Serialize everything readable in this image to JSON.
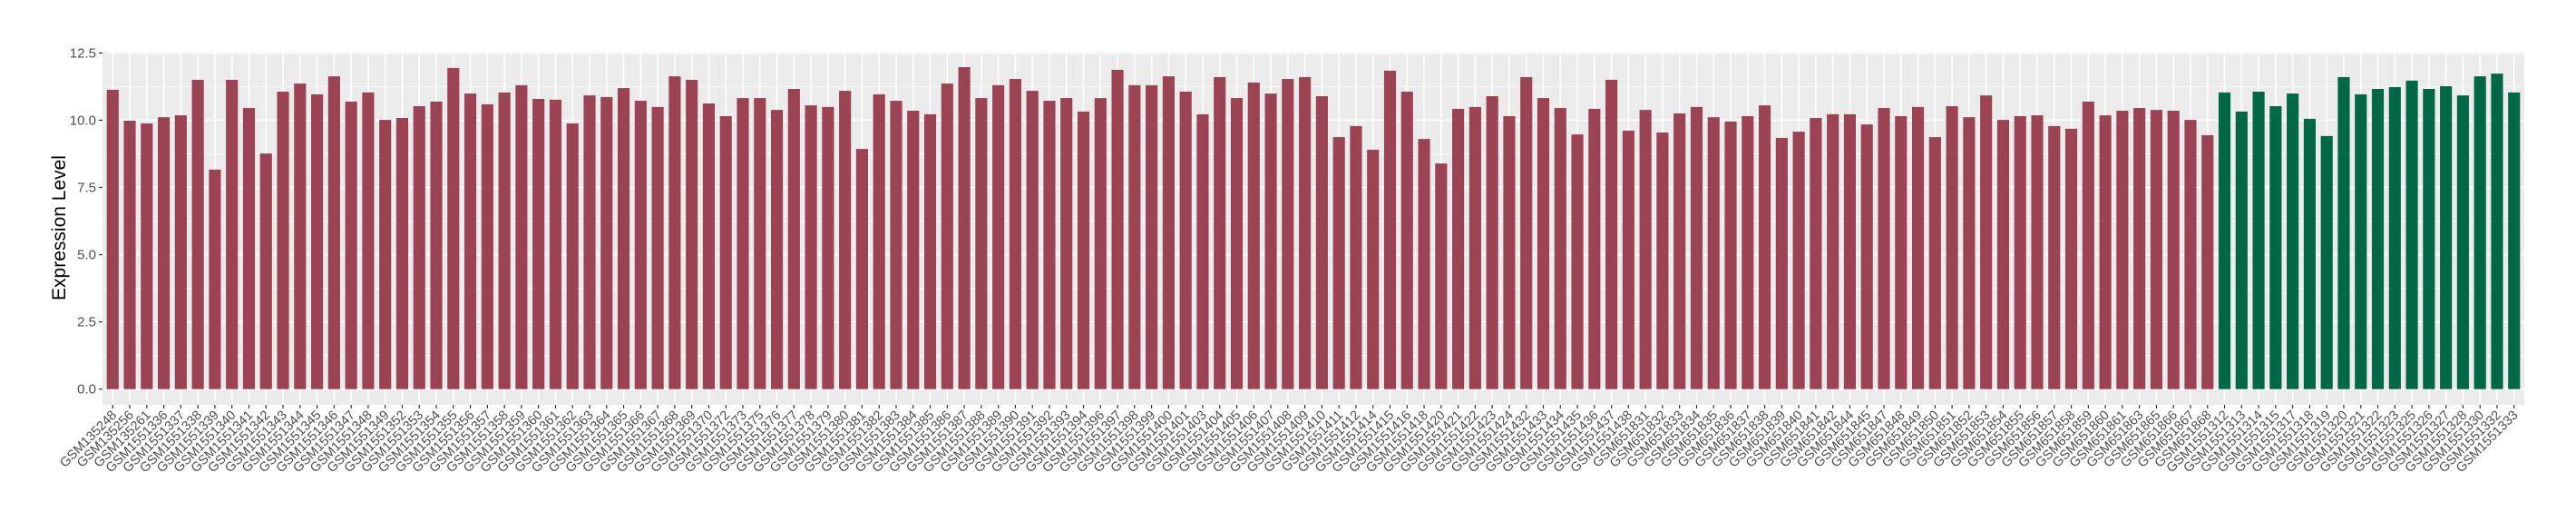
{
  "chart_data": {
    "type": "bar",
    "title": "",
    "xlabel": "",
    "ylabel": "Expression Level",
    "ylim": [
      0,
      12.5
    ],
    "yticks": [
      "0.0",
      "2.5",
      "5.0",
      "7.5",
      "10.0",
      "12.5"
    ],
    "grid": true,
    "legend": "none",
    "colors": {
      "group1": "#9b4352",
      "group2": "#006846",
      "panel": "#ebebeb",
      "grid": "#ffffff"
    },
    "categories": [
      "GSM135248",
      "GSM135256",
      "GSM135261",
      "GSM1551336",
      "GSM1551337",
      "GSM1551338",
      "GSM1551339",
      "GSM1551340",
      "GSM1551341",
      "GSM1551342",
      "GSM1551343",
      "GSM1551344",
      "GSM1551345",
      "GSM1551346",
      "GSM1551347",
      "GSM1551348",
      "GSM1551349",
      "GSM1551352",
      "GSM1551353",
      "GSM1551354",
      "GSM1551355",
      "GSM1551356",
      "GSM1551357",
      "GSM1551358",
      "GSM1551359",
      "GSM1551360",
      "GSM1551361",
      "GSM1551362",
      "GSM1551363",
      "GSM1551364",
      "GSM1551365",
      "GSM1551366",
      "GSM1551367",
      "GSM1551368",
      "GSM1551369",
      "GSM1551370",
      "GSM1551372",
      "GSM1551373",
      "GSM1551375",
      "GSM1551376",
      "GSM1551377",
      "GSM1551378",
      "GSM1551379",
      "GSM1551380",
      "GSM1551381",
      "GSM1551382",
      "GSM1551383",
      "GSM1551384",
      "GSM1551385",
      "GSM1551386",
      "GSM1551387",
      "GSM1551388",
      "GSM1551389",
      "GSM1551390",
      "GSM1551391",
      "GSM1551392",
      "GSM1551393",
      "GSM1551394",
      "GSM1551396",
      "GSM1551397",
      "GSM1551398",
      "GSM1551399",
      "GSM1551400",
      "GSM1551401",
      "GSM1551403",
      "GSM1551404",
      "GSM1551405",
      "GSM1551406",
      "GSM1551407",
      "GSM1551408",
      "GSM1551409",
      "GSM1551410",
      "GSM1551411",
      "GSM1551412",
      "GSM1551414",
      "GSM1551415",
      "GSM1551416",
      "GSM1551418",
      "GSM1551420",
      "GSM1551421",
      "GSM1551422",
      "GSM1551423",
      "GSM1551424",
      "GSM1551432",
      "GSM1551433",
      "GSM1551434",
      "GSM1551435",
      "GSM1551436",
      "GSM1551437",
      "GSM1551438",
      "GSM651831",
      "GSM651832",
      "GSM651833",
      "GSM651834",
      "GSM651835",
      "GSM651836",
      "GSM651837",
      "GSM651838",
      "GSM651839",
      "GSM651840",
      "GSM651841",
      "GSM651842",
      "GSM651844",
      "GSM651845",
      "GSM651847",
      "GSM651848",
      "GSM651849",
      "GSM651850",
      "GSM651851",
      "GSM651852",
      "GSM651853",
      "GSM651854",
      "GSM651855",
      "GSM651856",
      "GSM651857",
      "GSM651858",
      "GSM651859",
      "GSM651860",
      "GSM651861",
      "GSM651863",
      "GSM651865",
      "GSM651866",
      "GSM651867",
      "GSM651868",
      "GSM1551312",
      "GSM1551313",
      "GSM1551314",
      "GSM1551315",
      "GSM1551317",
      "GSM1551318",
      "GSM1551319",
      "GSM1551320",
      "GSM1551321",
      "GSM1551322",
      "GSM1551323",
      "GSM1551325",
      "GSM1551326",
      "GSM1551327",
      "GSM1551328",
      "GSM1551330",
      "GSM1551332",
      "GSM1551333"
    ],
    "values": [
      11.13,
      9.98,
      9.88,
      10.11,
      10.18,
      11.5,
      8.16,
      11.5,
      10.45,
      8.76,
      11.06,
      11.36,
      10.96,
      11.63,
      10.69,
      11.03,
      10.01,
      10.08,
      10.52,
      10.69,
      11.94,
      10.99,
      10.59,
      11.03,
      11.3,
      10.79,
      10.76,
      9.88,
      10.92,
      10.86,
      11.19,
      10.72,
      10.49,
      11.63,
      11.5,
      10.62,
      10.15,
      10.82,
      10.82,
      10.38,
      11.16,
      10.55,
      10.49,
      11.09,
      8.93,
      10.96,
      10.72,
      10.35,
      10.22,
      11.36,
      11.97,
      10.82,
      11.3,
      11.53,
      11.09,
      10.72,
      10.82,
      10.32,
      10.82,
      11.87,
      11.3,
      11.3,
      11.63,
      11.06,
      10.22,
      11.6,
      10.82,
      11.4,
      10.99,
      11.53,
      11.6,
      10.89,
      9.37,
      9.78,
      8.9,
      11.84,
      11.06,
      9.3,
      8.39,
      10.42,
      10.49,
      10.89,
      10.15,
      11.6,
      10.82,
      10.45,
      9.47,
      10.42,
      11.5,
      9.61,
      10.38,
      9.54,
      10.25,
      10.49,
      10.11,
      9.95,
      10.15,
      10.55,
      9.34,
      9.57,
      10.08,
      10.22,
      10.22,
      9.84,
      10.45,
      10.15,
      10.49,
      9.37,
      10.52,
      10.11,
      10.92,
      10.01,
      10.15,
      10.18,
      9.78,
      9.68,
      10.69,
      10.18,
      10.35,
      10.45,
      10.38,
      10.35,
      10.01,
      9.44,
      11.03,
      10.32,
      11.06,
      10.52,
      10.99,
      10.05,
      9.41,
      11.6,
      10.96,
      11.16,
      11.23,
      11.47,
      11.16,
      11.26,
      10.92,
      11.63,
      11.73,
      11.03
    ],
    "groups": [
      1,
      1,
      1,
      1,
      1,
      1,
      1,
      1,
      1,
      1,
      1,
      1,
      1,
      1,
      1,
      1,
      1,
      1,
      1,
      1,
      1,
      1,
      1,
      1,
      1,
      1,
      1,
      1,
      1,
      1,
      1,
      1,
      1,
      1,
      1,
      1,
      1,
      1,
      1,
      1,
      1,
      1,
      1,
      1,
      1,
      1,
      1,
      1,
      1,
      1,
      1,
      1,
      1,
      1,
      1,
      1,
      1,
      1,
      1,
      1,
      1,
      1,
      1,
      1,
      1,
      1,
      1,
      1,
      1,
      1,
      1,
      1,
      1,
      1,
      1,
      1,
      1,
      1,
      1,
      1,
      1,
      1,
      1,
      1,
      1,
      1,
      1,
      1,
      1,
      1,
      1,
      1,
      1,
      1,
      1,
      1,
      1,
      1,
      1,
      1,
      1,
      1,
      1,
      1,
      1,
      1,
      1,
      1,
      1,
      1,
      1,
      1,
      1,
      1,
      1,
      1,
      1,
      1,
      1,
      1,
      1,
      1,
      1,
      1,
      2,
      2,
      2,
      2,
      2,
      2,
      2,
      2,
      2,
      2,
      2,
      2,
      2,
      2,
      2,
      2,
      2,
      2
    ]
  }
}
